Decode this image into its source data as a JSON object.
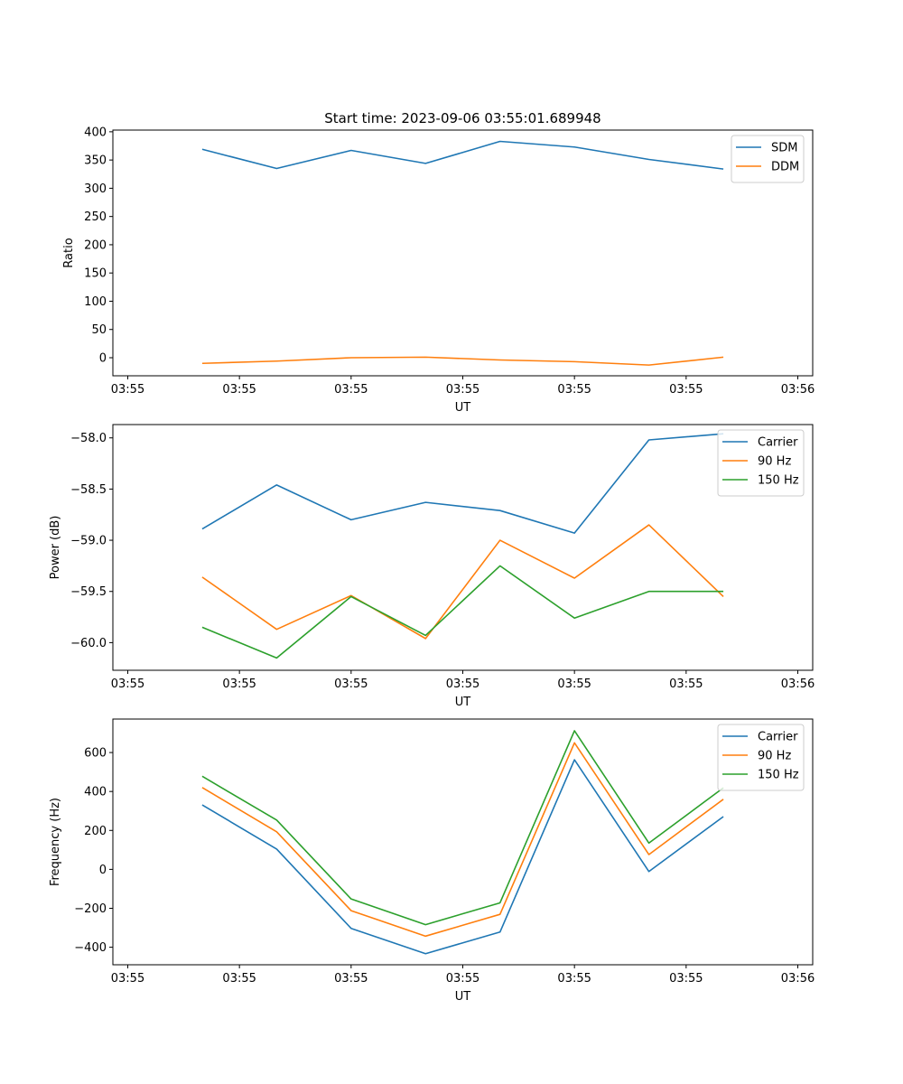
{
  "figure": {
    "title": "Start time: 2023-09-06 03:55:01.689948"
  },
  "chart_data": [
    {
      "type": "line",
      "title": "Start time: 2023-09-06 03:55:01.689948",
      "xlabel": "UT",
      "ylabel": "Ratio",
      "x_tick_labels": [
        "03:55",
        "03:55",
        "03:55",
        "03:55",
        "03:55",
        "03:55",
        "03:56"
      ],
      "x": [
        1,
        2,
        3,
        4,
        5,
        6,
        7,
        8
      ],
      "xlim": [
        -0.2,
        9.2
      ],
      "x_ticks": [
        0,
        1.5,
        3,
        4.5,
        6,
        7.5,
        9
      ],
      "ylim": [
        -32,
        403
      ],
      "y_ticks": [
        0,
        50,
        100,
        150,
        200,
        250,
        300,
        350,
        400
      ],
      "y_tick_labels": [
        "0",
        "50",
        "100",
        "150",
        "200",
        "250",
        "300",
        "350",
        "400"
      ],
      "legend": "top-right",
      "grid": false,
      "series": [
        {
          "name": "SDM",
          "color": "#1f77b4",
          "values": [
            369,
            335,
            367,
            344,
            383,
            373,
            351,
            334
          ]
        },
        {
          "name": "DDM",
          "color": "#ff7f0e",
          "values": [
            -10,
            -6,
            0,
            1,
            -4,
            -7,
            -13,
            1
          ]
        }
      ]
    },
    {
      "type": "line",
      "title": "",
      "xlabel": "UT",
      "ylabel": "Power (dB)",
      "x_tick_labels": [
        "03:55",
        "03:55",
        "03:55",
        "03:55",
        "03:55",
        "03:55",
        "03:56"
      ],
      "x": [
        1,
        2,
        3,
        4,
        5,
        6,
        7,
        8
      ],
      "xlim": [
        -0.2,
        9.2
      ],
      "x_ticks": [
        0,
        1.5,
        3,
        4.5,
        6,
        7.5,
        9
      ],
      "ylim": [
        -60.27,
        -57.87
      ],
      "y_ticks": [
        -58.0,
        -58.5,
        -59.0,
        -59.5,
        -60.0
      ],
      "y_tick_labels": [
        "−58.0",
        "−58.5",
        "−59.0",
        "−59.5",
        "−60.0"
      ],
      "legend": "top-right",
      "grid": false,
      "series": [
        {
          "name": "Carrier",
          "color": "#1f77b4",
          "values": [
            -58.89,
            -58.46,
            -58.8,
            -58.63,
            -58.71,
            -58.93,
            -58.02,
            -57.96
          ]
        },
        {
          "name": "90 Hz",
          "color": "#ff7f0e",
          "values": [
            -59.36,
            -59.87,
            -59.54,
            -59.96,
            -59.0,
            -59.37,
            -58.85,
            -59.55
          ]
        },
        {
          "name": "150 Hz",
          "color": "#2ca02c",
          "values": [
            -59.85,
            -60.15,
            -59.55,
            -59.93,
            -59.25,
            -59.76,
            -59.5,
            -59.5
          ]
        }
      ]
    },
    {
      "type": "line",
      "title": "",
      "xlabel": "UT",
      "ylabel": "Frequency (Hz)",
      "x_tick_labels": [
        "03:55",
        "03:55",
        "03:55",
        "03:55",
        "03:55",
        "03:55",
        "03:56"
      ],
      "x": [
        1,
        2,
        3,
        4,
        5,
        6,
        7,
        8
      ],
      "xlim": [
        -0.2,
        9.2
      ],
      "x_ticks": [
        0,
        1.5,
        3,
        4.5,
        6,
        7.5,
        9
      ],
      "ylim": [
        -490,
        772
      ],
      "y_ticks": [
        -400,
        -200,
        0,
        200,
        400,
        600
      ],
      "y_tick_labels": [
        "−400",
        "−200",
        "0",
        "200",
        "400",
        "600"
      ],
      "legend": "top-right",
      "grid": false,
      "series": [
        {
          "name": "Carrier",
          "color": "#1f77b4",
          "values": [
            331,
            104,
            -303,
            -433,
            -322,
            563,
            -11,
            271
          ]
        },
        {
          "name": "90 Hz",
          "color": "#ff7f0e",
          "values": [
            420,
            193,
            -212,
            -343,
            -231,
            650,
            76,
            360
          ]
        },
        {
          "name": "150 Hz",
          "color": "#2ca02c",
          "values": [
            478,
            253,
            -152,
            -284,
            -172,
            712,
            135,
            419
          ]
        }
      ]
    }
  ]
}
